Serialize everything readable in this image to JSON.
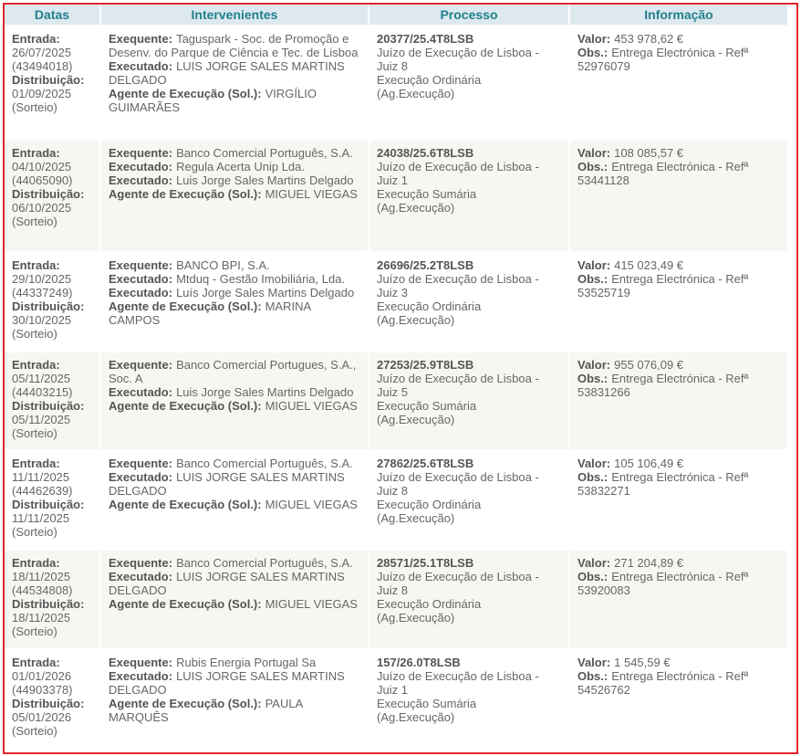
{
  "table": {
    "header": [
      "Datas",
      "Intervenientes",
      "Processo",
      "Informação"
    ],
    "rows": [
      [
        [
          {
            "label": "Entrada:"
          },
          {
            "text": "26/07/2025"
          },
          {
            "text": "(43494018)"
          },
          {
            "label": "Distribuição:"
          },
          {
            "text": "01/09/2025"
          },
          {
            "text": "(Sorteio)"
          }
        ],
        [
          {
            "label": "Exequente:",
            "text": "Taguspark - Soc. de Promoção e Desenv. do Parque de Ciência e Tec. de Lisboa"
          },
          {
            "label": "Executado:",
            "text": "LUIS JORGE SALES MARTINS DELGADO"
          },
          {
            "label": "Agente de Execução (Sol.):",
            "text": "VIRGÍLIO GUIMARÃES"
          }
        ],
        [
          {
            "label": "20377/25.4T8LSB"
          },
          {
            "text": "Juízo de Execução de Lisboa - Juiz 8"
          },
          {
            "text": "Execução Ordinária"
          },
          {
            "text": "(Ag.Execução)"
          }
        ],
        [
          {
            "label": "Valor:",
            "text": "453 978,62 €"
          },
          {
            "label": "Obs.:",
            "text": "Entrega Electrónica - Refª 52976079"
          }
        ]
      ],
      [
        [
          {
            "label": "Entrada:"
          },
          {
            "text": "04/10/2025"
          },
          {
            "text": "(44065090)"
          },
          {
            "label": "Distribuição:"
          },
          {
            "text": "06/10/2025"
          },
          {
            "text": "(Sorteio)"
          }
        ],
        [
          {
            "label": "Exequente:",
            "text": "Banco Comercial Português, S.A."
          },
          {
            "label": "Executado:",
            "text": "Regula Acerta Unip Lda."
          },
          {
            "label": "Executado:",
            "text": "Luis Jorge Sales Martins Delgado"
          },
          {
            "label": "Agente de Execução (Sol.):",
            "text": "MIGUEL VIEGAS"
          }
        ],
        [
          {
            "label": "24038/25.6T8LSB"
          },
          {
            "text": "Juízo de Execução de Lisboa - Juiz 1"
          },
          {
            "text": "Execução Sumária"
          },
          {
            "text": "(Ag.Execução)"
          }
        ],
        [
          {
            "label": "Valor:",
            "text": "108 085,57 €"
          },
          {
            "label": "Obs.:",
            "text": "Entrega Electrónica - Refª 53441128"
          }
        ]
      ],
      [
        [
          {
            "label": "Entrada:"
          },
          {
            "text": "29/10/2025"
          },
          {
            "text": "(44337249)"
          },
          {
            "label": "Distribuição:"
          },
          {
            "text": "30/10/2025"
          },
          {
            "text": "(Sorteio)"
          }
        ],
        [
          {
            "label": "Exequente:",
            "text": "BANCO BPI, S.A."
          },
          {
            "label": "Executado:",
            "text": "Mtduq - Gestão Imobiliária, Lda."
          },
          {
            "label": "Executado:",
            "text": "Luís Jorge Sales Martins Delgado"
          },
          {
            "label": "Agente de Execução (Sol.):",
            "text": "MARINA CAMPOS"
          }
        ],
        [
          {
            "label": "26696/25.2T8LSB"
          },
          {
            "text": "Juízo de Execução de Lisboa - Juiz 3"
          },
          {
            "text": "Execução Ordinária"
          },
          {
            "text": "(Ag.Execução)"
          }
        ],
        [
          {
            "label": "Valor:",
            "text": "415 023,49 €"
          },
          {
            "label": "Obs.:",
            "text": "Entrega Electrónica - Refª 53525719"
          }
        ]
      ],
      [
        [
          {
            "label": "Entrada:"
          },
          {
            "text": "05/11/2025"
          },
          {
            "text": "(44403215)"
          },
          {
            "label": "Distribuição:"
          },
          {
            "text": "05/11/2025"
          },
          {
            "text": "(Sorteio)"
          }
        ],
        [
          {
            "label": "Exequente:",
            "text": "Banco Comercial Portugues, S.A., Soc. A"
          },
          {
            "label": "Executado:",
            "text": "Luis Jorge Sales Martins Delgado"
          },
          {
            "label": "Agente de Execução (Sol.):",
            "text": "MIGUEL VIEGAS"
          }
        ],
        [
          {
            "label": "27253/25.9T8LSB"
          },
          {
            "text": "Juízo de Execução de Lisboa - Juiz 5"
          },
          {
            "text": "Execução Sumária"
          },
          {
            "text": "(Ag.Execução)"
          }
        ],
        [
          {
            "label": "Valor:",
            "text": "955 076,09 €"
          },
          {
            "label": "Obs.:",
            "text": "Entrega Electrónica - Refª 53831266"
          }
        ]
      ],
      [
        [
          {
            "label": "Entrada:"
          },
          {
            "text": "11/11/2025"
          },
          {
            "text": "(44462639)"
          },
          {
            "label": "Distribuição:"
          },
          {
            "text": "11/11/2025"
          },
          {
            "text": "(Sorteio)"
          }
        ],
        [
          {
            "label": "Exequente:",
            "text": "Banco Comercial Português, S.A."
          },
          {
            "label": "Executado:",
            "text": "LUIS JORGE SALES MARTINS DELGADO"
          },
          {
            "label": "Agente de Execução (Sol.):",
            "text": "MIGUEL VIEGAS"
          }
        ],
        [
          {
            "label": "27862/25.6T8LSB"
          },
          {
            "text": "Juízo de Execução de Lisboa - Juiz 8"
          },
          {
            "text": "Execução Ordinária"
          },
          {
            "text": "(Ag.Execução)"
          }
        ],
        [
          {
            "label": "Valor:",
            "text": "105 106,49 €"
          },
          {
            "label": "Obs.:",
            "text": "Entrega Electrónica - Refª 53832271"
          }
        ]
      ],
      [
        [
          {
            "label": "Entrada:"
          },
          {
            "text": "18/11/2025"
          },
          {
            "text": "(44534808)"
          },
          {
            "label": "Distribuição:"
          },
          {
            "text": "18/11/2025"
          },
          {
            "text": "(Sorteio)"
          }
        ],
        [
          {
            "label": "Exequente:",
            "text": "Banco Comercial Português, S.A."
          },
          {
            "label": "Executado:",
            "text": "LUIS JORGE SALES MARTINS DELGADO"
          },
          {
            "label": "Agente de Execução (Sol.):",
            "text": "MIGUEL VIEGAS"
          }
        ],
        [
          {
            "label": "28571/25.1T8LSB"
          },
          {
            "text": "Juízo de Execução de Lisboa - Juiz 8"
          },
          {
            "text": "Execução Ordinária"
          },
          {
            "text": "(Ag.Execução)"
          }
        ],
        [
          {
            "label": "Valor:",
            "text": "271 204,89 €"
          },
          {
            "label": "Obs.:",
            "text": "Entrega Electrónica - Refª 53920083"
          }
        ]
      ],
      [
        [
          {
            "label": "Entrada:"
          },
          {
            "text": "01/01/2026"
          },
          {
            "text": "(44903378)"
          },
          {
            "label": "Distribuição:"
          },
          {
            "text": "05/01/2026"
          },
          {
            "text": "(Sorteio)"
          }
        ],
        [
          {
            "label": "Exequente:",
            "text": "Rubis Energia Portugal Sa"
          },
          {
            "label": "Executado:",
            "text": "LUIS JORGE SALES MARTINS DELGADO"
          },
          {
            "label": "Agente de Execução (Sol.):",
            "text": "PAULA MARQUÊS"
          }
        ],
        [
          {
            "label": "157/26.0T8LSB"
          },
          {
            "text": "Juízo de Execução de Lisboa - Juiz 1"
          },
          {
            "text": "Execução Sumária"
          },
          {
            "text": "(Ag.Execução)"
          }
        ],
        [
          {
            "label": "Valor:",
            "text": "1 545,59 €"
          },
          {
            "label": "Obs.:",
            "text": "Entrega Electrónica - Refª 54526762"
          }
        ]
      ]
    ]
  }
}
